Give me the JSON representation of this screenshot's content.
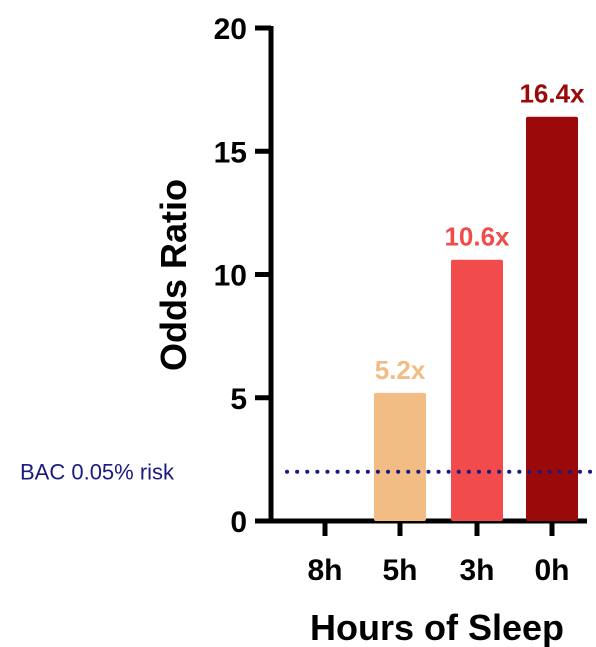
{
  "chart_data": {
    "type": "bar",
    "categories": [
      "8h",
      "5h",
      "3h",
      "0h"
    ],
    "values": [
      0,
      5.2,
      10.6,
      16.4
    ],
    "data_labels": [
      "",
      "5.2x",
      "10.6x",
      "16.4x"
    ],
    "bar_colors": [
      "#ffffff",
      "#F2BC85",
      "#F24B4B",
      "#9B0A0A"
    ],
    "xlabel": "Hours of Sleep",
    "ylabel": "Odds Ratio",
    "ylim": [
      0,
      20
    ],
    "yticks": [
      0,
      5,
      10,
      15,
      20
    ],
    "grid": false,
    "reference_line": {
      "label": "BAC 0.05% risk",
      "value": 2.0,
      "color": "#1A1A80",
      "style": "dotted"
    }
  }
}
